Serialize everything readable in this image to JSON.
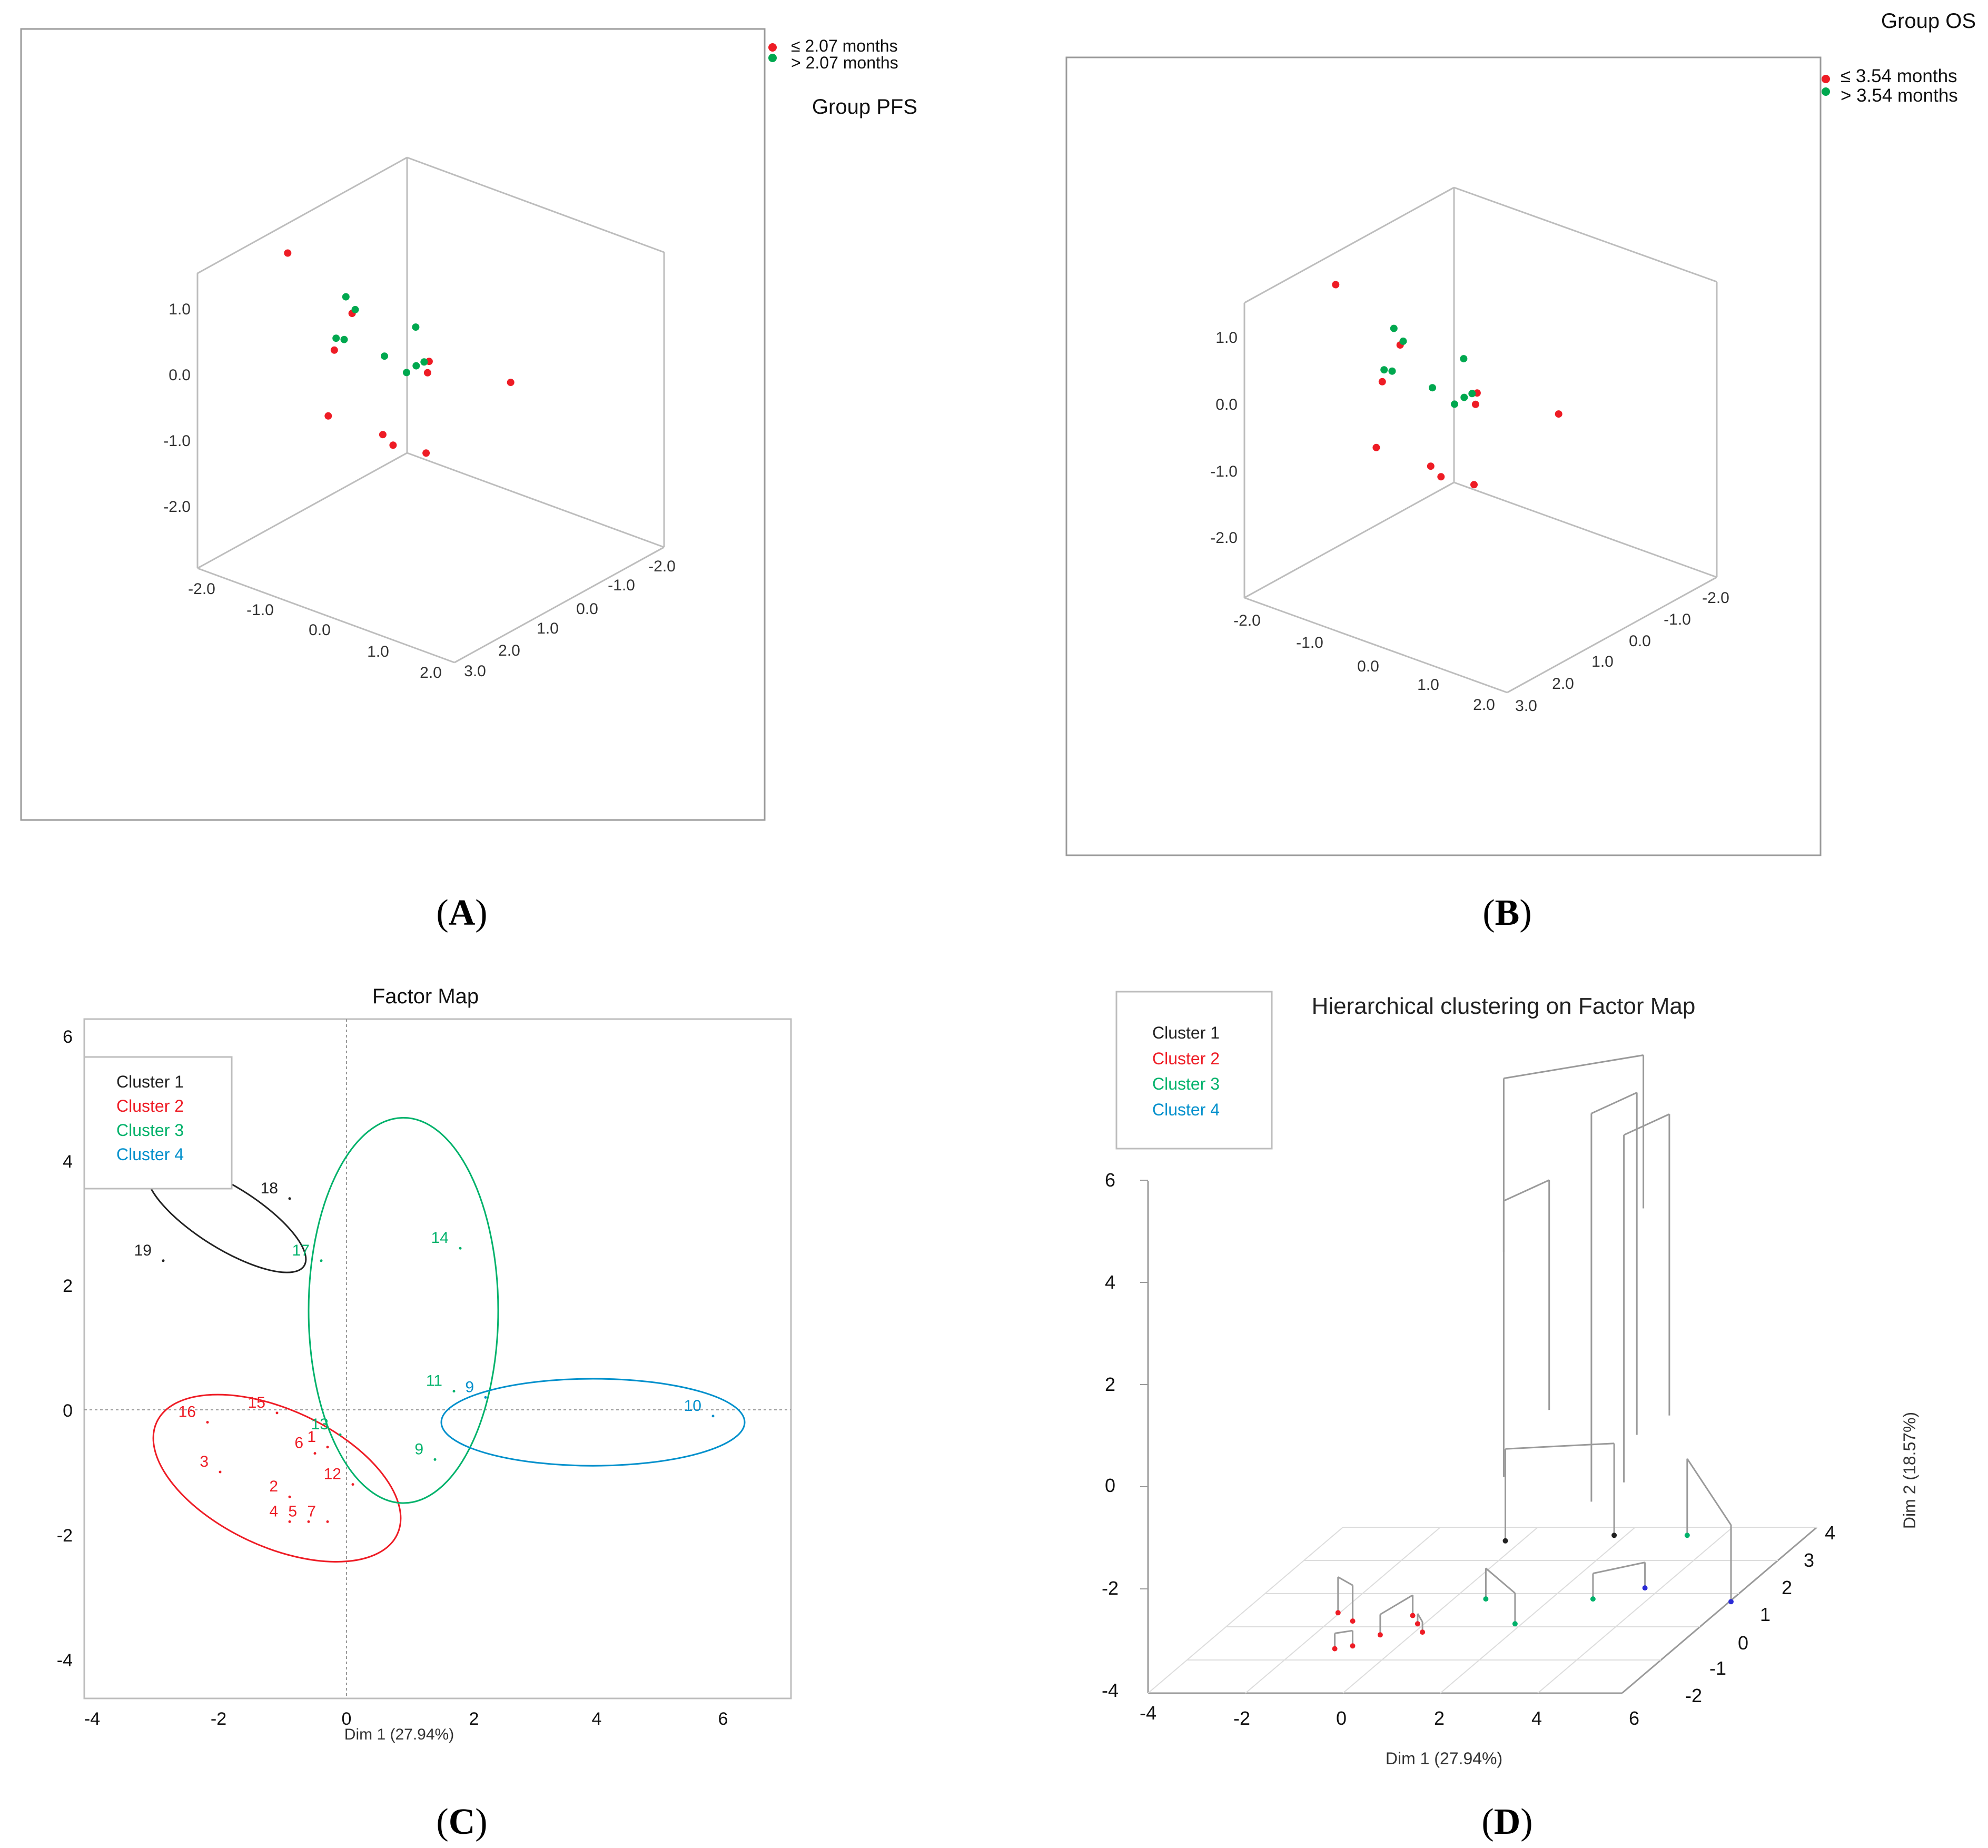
{
  "panels": {
    "A": {
      "label_open": "(",
      "label_letter": "A",
      "label_close": ")",
      "title": "Group PFS",
      "legend": [
        "≤ 2.07 months",
        "> 2.07 months"
      ],
      "ticks_vertical": [
        "1.0",
        "0.0",
        "-1.0",
        "-2.0"
      ],
      "ticks_left_floor": [
        "-2.0",
        "-1.0",
        "0.0",
        "1.0",
        "2.0"
      ],
      "ticks_right_floor": [
        "-2.0",
        "-1.0",
        "0.0",
        "1.0",
        "2.0",
        "3.0"
      ]
    },
    "B": {
      "label_open": "(",
      "label_letter": "B",
      "label_close": ")",
      "title": "Group OS",
      "legend": [
        "≤ 3.54 months",
        "> 3.54 months"
      ],
      "ticks_vertical": [
        "1.0",
        "0.0",
        "-1.0",
        "-2.0"
      ],
      "ticks_left_floor": [
        "-2.0",
        "-1.0",
        "0.0",
        "1.0",
        "2.0"
      ],
      "ticks_right_floor": [
        "-2.0",
        "-1.0",
        "0.0",
        "1.0",
        "2.0",
        "3.0"
      ]
    },
    "C": {
      "label_open": "(",
      "label_letter": "C",
      "label_close": ")",
      "title": "Factor Map",
      "xlabel": "Dim 1 (27.94%)",
      "legend": [
        "Cluster 1",
        "Cluster 2",
        "Cluster 3",
        "Cluster 4"
      ],
      "x_ticks": [
        "-4",
        "-2",
        "0",
        "2",
        "4",
        "6"
      ],
      "y_ticks": [
        "6",
        "4",
        "2",
        "0",
        "-2",
        "-4"
      ]
    },
    "D": {
      "label_open": "(",
      "label_letter": "D",
      "label_close": ")",
      "title": "Hierarchical clustering on Factor Map",
      "xlabel": "Dim 1 (27.94%)",
      "ylabel": "Dim 2 (18.57%)",
      "legend": [
        "Cluster 1",
        "Cluster 2",
        "Cluster 3",
        "Cluster 4"
      ],
      "height_ticks": [
        "6",
        "4",
        "2",
        "0",
        "-2",
        "-4"
      ],
      "x_ticks": [
        "-4",
        "-2",
        "0",
        "2",
        "4",
        "6"
      ],
      "depth_ticks": [
        "4",
        "3",
        "2",
        "1",
        "0",
        "-1",
        "-2"
      ]
    }
  },
  "colors": {
    "red": "#ee1c25",
    "green": "#00a84f",
    "cluster1": "#222222",
    "cluster2": "#ee1c25",
    "cluster3": "#00b26b",
    "cluster4": "#0090cc",
    "blue_points": "#2b2bd6"
  },
  "chart_data": [
    {
      "panel": "A",
      "type": "scatter",
      "projection": "3d",
      "title": "Group PFS",
      "series": [
        {
          "name": "≤ 2.07 months",
          "color": "red",
          "points": [
            [
              -2.65,
              -1.4,
              1.6
            ],
            [
              -1.45,
              -1.1,
              0.6
            ],
            [
              -0.75,
              2.0,
              0.9
            ],
            [
              -0.95,
              1.7,
              -1.3
            ],
            [
              -0.15,
              0.75,
              -2.0
            ],
            [
              -0.05,
              1.6,
              -1.35
            ],
            [
              0.35,
              0.55,
              -2.0
            ],
            [
              1.1,
              -1.6,
              -0.1
            ],
            [
              -0.1,
              -1.0,
              0.0
            ],
            [
              0.1,
              -0.3,
              0.0
            ]
          ]
        },
        {
          "name": "> 2.07 months",
          "color": "green",
          "points": [
            [
              -0.8,
              -0.8,
              -0.2
            ],
            [
              -1.3,
              -0.8,
              0.9
            ],
            [
              -1.4,
              -0.1,
              0.2
            ],
            [
              -1.2,
              0.0,
              1.6
            ],
            [
              -1.1,
              0.4,
              0.5
            ],
            [
              0.1,
              0.3,
              0.4
            ],
            [
              0.0,
              0.5,
              0.2
            ],
            [
              -0.2,
              -0.6,
              1.1
            ],
            [
              0.3,
              0.5,
              0.7
            ]
          ]
        }
      ]
    },
    {
      "panel": "B",
      "type": "scatter",
      "projection": "3d",
      "title": "Group OS",
      "series": [
        {
          "name": "≤ 3.54 months",
          "color": "red",
          "points": [
            [
              -2.65,
              -1.4,
              1.6
            ],
            [
              -1.45,
              -1.1,
              0.6
            ],
            [
              -0.75,
              2.0,
              0.9
            ],
            [
              -0.95,
              1.7,
              -1.3
            ],
            [
              -0.15,
              0.75,
              -2.0
            ],
            [
              -0.05,
              1.6,
              -1.35
            ],
            [
              0.35,
              0.55,
              -2.0
            ],
            [
              1.1,
              -1.6,
              -0.1
            ],
            [
              -0.1,
              -1.0,
              0.0
            ],
            [
              0.1,
              -0.3,
              0.0
            ]
          ]
        },
        {
          "name": "> 3.54 months",
          "color": "green",
          "points": [
            [
              -0.8,
              -0.8,
              -0.2
            ],
            [
              -1.3,
              -0.8,
              0.9
            ],
            [
              -1.4,
              -0.1,
              0.2
            ],
            [
              -1.2,
              0.0,
              1.6
            ],
            [
              -1.1,
              0.4,
              0.5
            ],
            [
              0.1,
              0.3,
              0.4
            ],
            [
              0.0,
              0.5,
              0.2
            ],
            [
              -0.2,
              -0.6,
              1.1
            ],
            [
              0.3,
              0.5,
              0.7
            ]
          ]
        }
      ]
    },
    {
      "panel": "C",
      "type": "scatter",
      "title": "Factor Map",
      "xlabel": "Dim 1 (27.94%)",
      "xlim": [
        -4.2,
        7.0
      ],
      "ylim": [
        -4.6,
        6.2
      ],
      "points": [
        {
          "id": "1",
          "x": -0.3,
          "y": -0.6,
          "cluster": 2
        },
        {
          "id": "2",
          "x": -0.9,
          "y": -1.4,
          "cluster": 2
        },
        {
          "id": "3",
          "x": -2.0,
          "y": -1.0,
          "cluster": 2
        },
        {
          "id": "4",
          "x": -0.9,
          "y": -1.8,
          "cluster": 2
        },
        {
          "id": "5",
          "x": -0.6,
          "y": -1.8,
          "cluster": 2
        },
        {
          "id": "6",
          "x": -0.5,
          "y": -0.7,
          "cluster": 2
        },
        {
          "id": "7",
          "x": -0.3,
          "y": -1.8,
          "cluster": 2
        },
        {
          "id": "12",
          "x": 0.1,
          "y": -1.2,
          "cluster": 2
        },
        {
          "id": "15",
          "x": -1.1,
          "y": -0.05,
          "cluster": 2
        },
        {
          "id": "16",
          "x": -2.2,
          "y": -0.2,
          "cluster": 2
        },
        {
          "id": "13",
          "x": -0.1,
          "y": -0.4,
          "cluster": 3
        },
        {
          "id": "9",
          "x": 1.4,
          "y": -0.8,
          "cluster": 3
        },
        {
          "id": "11",
          "x": 1.7,
          "y": 0.3,
          "cluster": 3
        },
        {
          "id": "14",
          "x": 1.8,
          "y": 2.6,
          "cluster": 3
        },
        {
          "id": "17",
          "x": -0.4,
          "y": 2.4,
          "cluster": 3
        },
        {
          "id": "18",
          "x": -0.9,
          "y": 3.4,
          "cluster": 1
        },
        {
          "id": "19",
          "x": -2.9,
          "y": 2.4,
          "cluster": 1
        },
        {
          "id": "9",
          "x": 2.2,
          "y": 0.2,
          "cluster": 4
        },
        {
          "id": "10",
          "x": 5.8,
          "y": -0.1,
          "cluster": 4
        }
      ],
      "ellipses": [
        {
          "cluster": 1,
          "cx": -1.9,
          "cy": 3.1,
          "rx": 1.45,
          "ry": 0.5,
          "angle_deg": 32
        },
        {
          "cluster": 2,
          "cx": -1.1,
          "cy": -1.1,
          "rx": 2.1,
          "ry": 1.1,
          "angle_deg": 25
        },
        {
          "cluster": 3,
          "cx": 0.9,
          "cy": 1.6,
          "rx": 1.5,
          "ry": 3.1,
          "angle_deg": 0
        },
        {
          "cluster": 4,
          "cx": 3.9,
          "cy": -0.2,
          "rx": 2.4,
          "ry": 0.7,
          "angle_deg": 0
        }
      ]
    },
    {
      "panel": "D",
      "type": "dendrogram",
      "projection": "3d",
      "title": "Hierarchical clustering on Factor Map",
      "xlabel": "Dim 1 (27.94%)",
      "ylabel": "Dim 2 (18.57%)",
      "height_range": [
        -4,
        6
      ],
      "leaves": [
        {
          "x": -1.3,
          "z": -0.2,
          "cluster": 2
        },
        {
          "x": -0.8,
          "z": -0.5,
          "cluster": 2
        },
        {
          "x": -0.5,
          "z": -1.5,
          "cluster": 2
        },
        {
          "x": -0.2,
          "z": -1.4,
          "cluster": 2
        },
        {
          "x": 0.1,
          "z": -1.0,
          "cluster": 2
        },
        {
          "x": 0.3,
          "z": -0.3,
          "cluster": 2
        },
        {
          "x": 0.6,
          "z": -0.6,
          "cluster": 2
        },
        {
          "x": 0.9,
          "z": -0.9,
          "cluster": 2
        },
        {
          "x": 0.4,
          "z": 2.4,
          "cluster": 1
        },
        {
          "x": 2.5,
          "z": 2.6,
          "cluster": 1
        },
        {
          "x": 1.4,
          "z": 0.3,
          "cluster": 3
        },
        {
          "x": 2.6,
          "z": -0.6,
          "cluster": 3
        },
        {
          "x": 3.6,
          "z": 0.3,
          "cluster": 3
        },
        {
          "x": 4.0,
          "z": 2.6,
          "cluster": 3
        },
        {
          "x": 4.4,
          "z": 0.7,
          "cluster": 4
        },
        {
          "x": 6.5,
          "z": 0.2,
          "cluster": 4
        }
      ],
      "merges": [
        {
          "x": 0.3,
          "z": 2.5,
          "height": 3.2
        },
        {
          "x": 2.9,
          "z": 2.3,
          "height": 4.6
        },
        {
          "x": 2.7,
          "z": 1.6,
          "height": 5.4
        }
      ]
    }
  ]
}
